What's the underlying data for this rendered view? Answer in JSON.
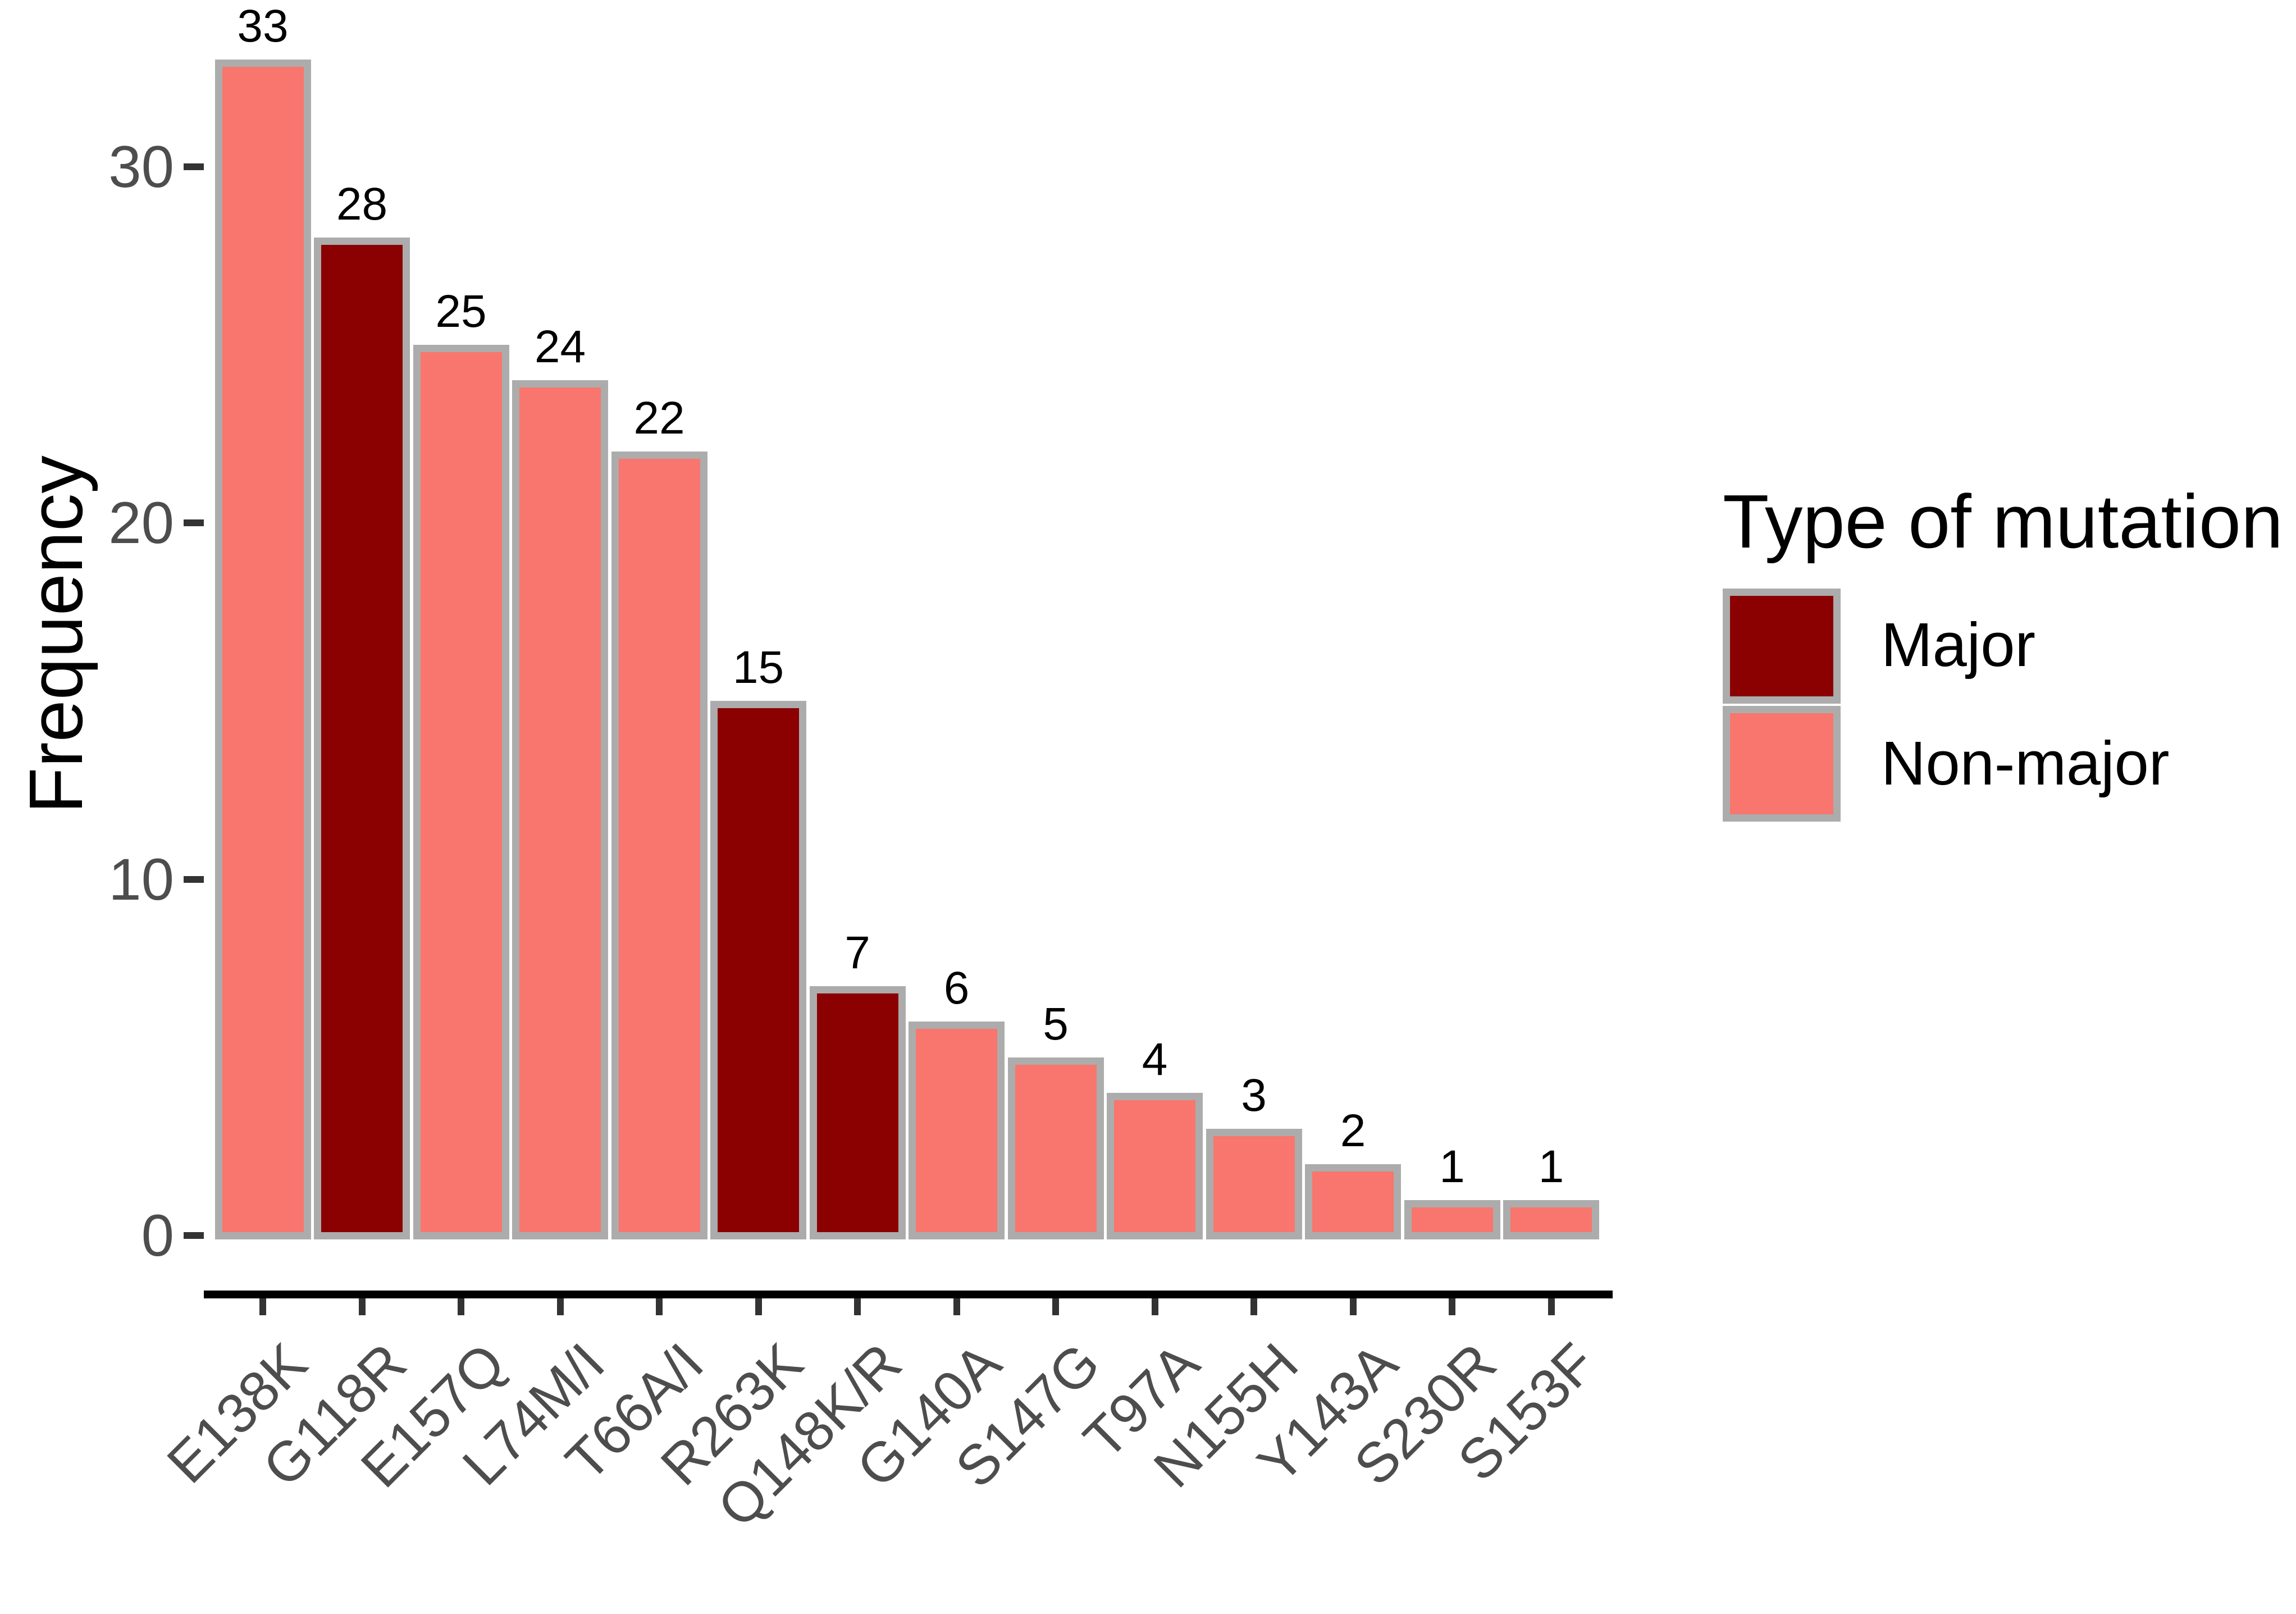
{
  "chart_data": {
    "type": "bar",
    "title": "",
    "xlabel": "",
    "ylabel": "Frequency",
    "categories": [
      "E138K",
      "G118R",
      "E157Q",
      "L74M/I",
      "T66A/I",
      "R263K",
      "Q148K/R",
      "G140A",
      "S147G",
      "T97A",
      "N155H",
      "Y143A",
      "S230R",
      "S153F"
    ],
    "values": [
      33,
      28,
      25,
      24,
      22,
      15,
      7,
      6,
      5,
      4,
      3,
      2,
      1,
      1
    ],
    "bar_value_labels": [
      "33",
      "28",
      "25",
      "24",
      "22",
      "15",
      "7",
      "6",
      "5",
      "4",
      "3",
      "2",
      "1",
      "1"
    ],
    "series_membership": [
      "Non-major",
      "Major",
      "Non-major",
      "Non-major",
      "Non-major",
      "Major",
      "Major",
      "Non-major",
      "Non-major",
      "Non-major",
      "Non-major",
      "Non-major",
      "Non-major",
      "Non-major"
    ],
    "y_ticks": [
      0,
      10,
      20,
      30
    ],
    "ylim": [
      0,
      34
    ],
    "grid": false,
    "legend": {
      "title": "Type of mutation",
      "position": "right",
      "entries": [
        {
          "label": "Major",
          "color": "#8B0000"
        },
        {
          "label": "Non-major",
          "color": "#F8766D"
        }
      ]
    },
    "colors": {
      "major": "#8B0000",
      "non_major": "#F8766D",
      "bar_border": "#ACACAC",
      "axis_text": "#4D4D4D",
      "axis_line": "#000000",
      "tick_mark": "#333333"
    }
  }
}
